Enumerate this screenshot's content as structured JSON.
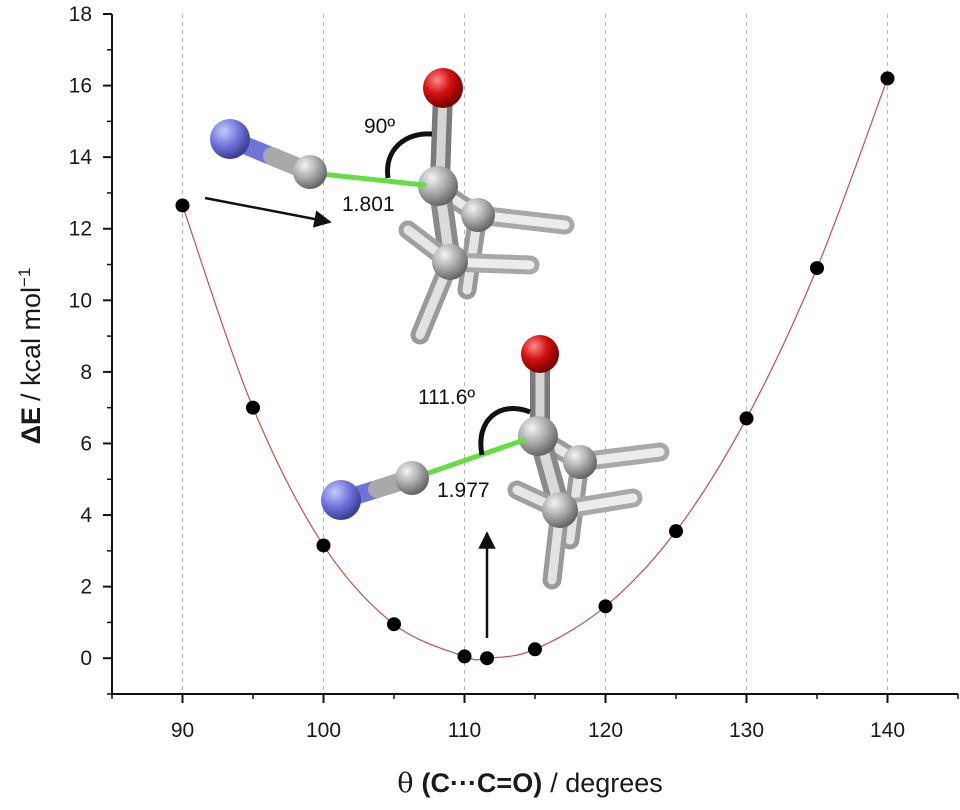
{
  "chart_data": {
    "type": "scatter",
    "xlabel": {
      "symbol": "θ",
      "bold": "(C···C=O)",
      "unit": "/ degrees"
    },
    "ylabel": {
      "symbol": "ΔE",
      "unit": "/ kcal mol",
      "exp": "−1"
    },
    "xlim": [
      85,
      145
    ],
    "ylim": [
      -1,
      18
    ],
    "xticks": [
      90,
      100,
      110,
      120,
      130,
      140
    ],
    "yticks": [
      0,
      2,
      4,
      6,
      8,
      10,
      12,
      14,
      16,
      18
    ],
    "grid": "vertical-dashed",
    "series": [
      {
        "x": [
          90,
          95,
          100,
          105,
          110,
          111.6,
          115,
          120,
          125,
          130,
          135,
          140
        ],
        "y": [
          12.65,
          7.0,
          3.15,
          0.95,
          0.05,
          0.0,
          0.25,
          1.45,
          3.55,
          6.7,
          10.9,
          16.2
        ],
        "color": "#000000",
        "fit_color": "#c0504d"
      }
    ],
    "annotations": {
      "top_angle": "90º",
      "top_distance": "1.801",
      "bottom_angle": "111.6º",
      "bottom_distance": "1.977"
    }
  },
  "colors": {
    "nitrogen": "#6f74d8",
    "carbon": "#a9a9a9",
    "oxygen": "#cc1111",
    "hydrogen": "#dcdcdc",
    "bond_highlight": "#66dd44"
  }
}
